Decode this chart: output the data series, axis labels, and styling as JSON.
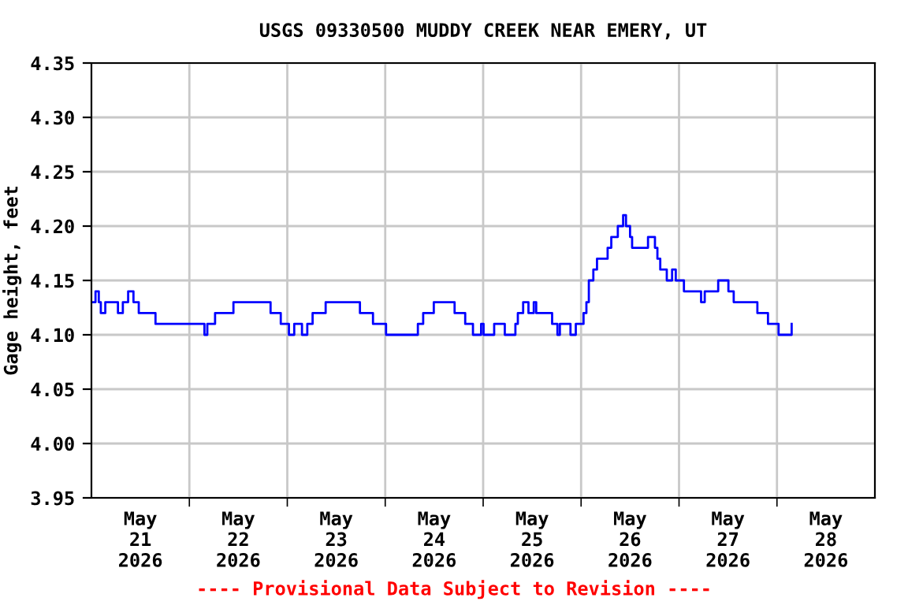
{
  "chart_data": {
    "type": "step",
    "title": "USGS 09330500 MUDDY CREEK NEAR EMERY, UT",
    "ylabel": "Gage height, feet",
    "annotations": [
      "---- Provisional Data Subject to Revision ----"
    ],
    "x": [
      "2026-05-21T00:00",
      "2026-05-21T01:00",
      "2026-05-21T01:48",
      "2026-05-21T02:18",
      "2026-05-21T03:24",
      "2026-05-21T06:30",
      "2026-05-21T07:42",
      "2026-05-21T09:00",
      "2026-05-21T10:18",
      "2026-05-21T11:36",
      "2026-05-21T15:42",
      "2026-05-22T03:42",
      "2026-05-22T04:24",
      "2026-05-22T06:18",
      "2026-05-22T10:48",
      "2026-05-22T19:54",
      "2026-05-22T22:24",
      "2026-05-23T00:24",
      "2026-05-23T01:42",
      "2026-05-23T03:36",
      "2026-05-23T04:54",
      "2026-05-23T06:12",
      "2026-05-23T09:24",
      "2026-05-23T17:48",
      "2026-05-23T21:00",
      "2026-05-24T00:12",
      "2026-05-24T08:00",
      "2026-05-24T09:18",
      "2026-05-24T11:54",
      "2026-05-24T17:00",
      "2026-05-24T19:36",
      "2026-05-24T21:30",
      "2026-05-24T23:30",
      "2026-05-25T00:06",
      "2026-05-25T02:42",
      "2026-05-25T05:18",
      "2026-05-25T07:54",
      "2026-05-25T08:30",
      "2026-05-25T09:48",
      "2026-05-25T11:06",
      "2026-05-25T12:24",
      "2026-05-25T13:00",
      "2026-05-25T16:54",
      "2026-05-25T18:12",
      "2026-05-25T18:48",
      "2026-05-25T21:24",
      "2026-05-25T22:42",
      "2026-05-26T00:36",
      "2026-05-26T01:18",
      "2026-05-26T01:54",
      "2026-05-26T03:00",
      "2026-05-26T03:54",
      "2026-05-26T06:30",
      "2026-05-26T07:24",
      "2026-05-26T09:00",
      "2026-05-26T10:18",
      "2026-05-26T11:00",
      "2026-05-26T12:00",
      "2026-05-26T12:30",
      "2026-05-26T16:24",
      "2026-05-26T18:06",
      "2026-05-26T18:42",
      "2026-05-26T19:24",
      "2026-05-26T21:00",
      "2026-05-26T22:18",
      "2026-05-26T23:12",
      "2026-05-27T01:12",
      "2026-05-27T05:24",
      "2026-05-27T06:18",
      "2026-05-27T09:36",
      "2026-05-27T12:06",
      "2026-05-27T13:24",
      "2026-05-27T19:12",
      "2026-05-27T21:48",
      "2026-05-28T00:24",
      "2026-05-28T03:36"
    ],
    "series": [
      {
        "color": "#0000ff",
        "values": [
          4.13,
          4.14,
          4.13,
          4.12,
          4.13,
          4.12,
          4.13,
          4.14,
          4.13,
          4.12,
          4.11,
          4.1,
          4.11,
          4.12,
          4.13,
          4.12,
          4.11,
          4.1,
          4.11,
          4.1,
          4.11,
          4.12,
          4.13,
          4.12,
          4.11,
          4.1,
          4.11,
          4.12,
          4.13,
          4.12,
          4.11,
          4.1,
          4.11,
          4.1,
          4.11,
          4.1,
          4.11,
          4.12,
          4.13,
          4.12,
          4.13,
          4.12,
          4.11,
          4.1,
          4.11,
          4.1,
          4.11,
          4.12,
          4.13,
          4.15,
          4.16,
          4.17,
          4.18,
          4.19,
          4.2,
          4.21,
          4.2,
          4.19,
          4.18,
          4.19,
          4.18,
          4.17,
          4.16,
          4.15,
          4.16,
          4.15,
          4.14,
          4.13,
          4.14,
          4.15,
          4.14,
          4.13,
          4.12,
          4.11,
          4.1,
          4.11
        ]
      }
    ],
    "xlim": [
      "2026-05-21T00:00",
      "2026-05-29T00:00"
    ],
    "xticks": [
      {
        "value": "2026-05-21T12:00",
        "label": "May\n21\n2026"
      },
      {
        "value": "2026-05-22T12:00",
        "label": "May\n22\n2026"
      },
      {
        "value": "2026-05-23T12:00",
        "label": "May\n23\n2026"
      },
      {
        "value": "2026-05-24T12:00",
        "label": "May\n24\n2026"
      },
      {
        "value": "2026-05-25T12:00",
        "label": "May\n25\n2026"
      },
      {
        "value": "2026-05-26T12:00",
        "label": "May\n26\n2026"
      },
      {
        "value": "2026-05-27T12:00",
        "label": "May\n27\n2026"
      },
      {
        "value": "2026-05-28T12:00",
        "label": "May\n28\n2026"
      },
      {
        "value": "2026-05-22T00:00",
        "label": null
      },
      {
        "value": "2026-05-23T00:00",
        "label": null
      },
      {
        "value": "2026-05-24T00:00",
        "label": null
      },
      {
        "value": "2026-05-25T00:00",
        "label": null
      },
      {
        "value": "2026-05-26T00:00",
        "label": null
      },
      {
        "value": "2026-05-27T00:00",
        "label": null
      },
      {
        "value": "2026-05-28T00:00",
        "label": null
      }
    ],
    "ylim": [
      3.95,
      4.35
    ],
    "yticks": [
      3.95,
      {
        "value": 4.0,
        "label": "4.00"
      },
      4.05,
      {
        "value": 4.1,
        "label": "4.10"
      },
      4.15,
      {
        "value": 4.2,
        "label": "4.20"
      },
      4.25,
      {
        "value": 4.3,
        "label": "4.30"
      },
      4.35
    ],
    "grid": true,
    "line_style": "solid",
    "marker": "none"
  }
}
